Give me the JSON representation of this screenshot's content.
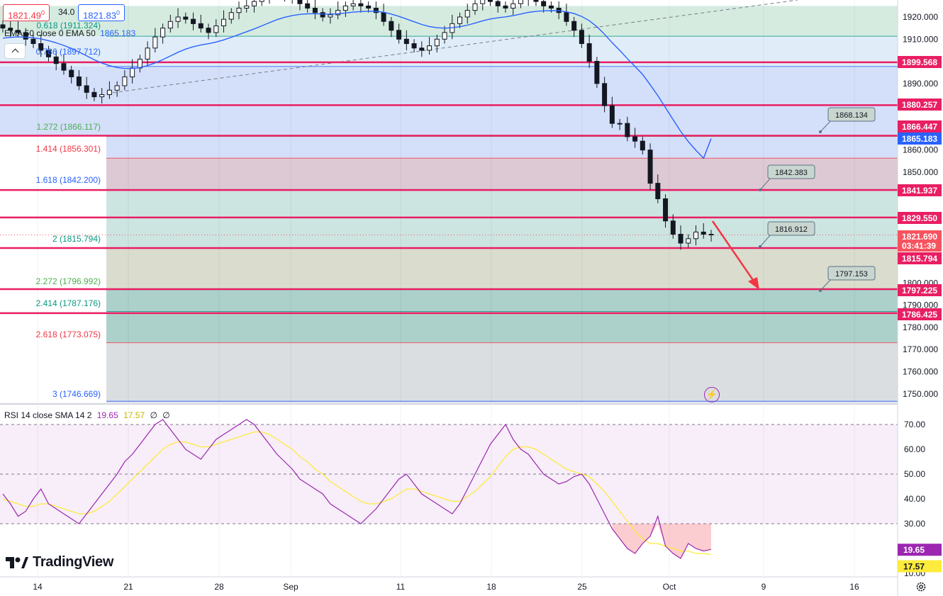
{
  "header": {
    "bid": "1821.49",
    "bid_sup": "0",
    "spread": "34.0",
    "ask": "1821.83",
    "ask_sup": "0",
    "ema_label": "EMA 50 close 0 EMA 50",
    "ema_value": "1865.183",
    "collapse_icon": "chevron-up-icon"
  },
  "colors": {
    "horizontal_line": "#e91e63",
    "ema": "#2962ff",
    "rsi": "#9c27b0",
    "rsi_sma": "#ffeb3b",
    "arrow": "#f23645",
    "up_candle": "#ffffff",
    "down_candle": "#131722"
  },
  "price_axis": {
    "ticks": [
      "1920.000",
      "1910.000",
      "1890.000",
      "1880.000",
      "1870.000",
      "1860.000",
      "1850.000",
      "1800.000",
      "1790.000",
      "1780.000",
      "1770.000",
      "1760.000",
      "1750.000"
    ],
    "tags": [
      {
        "label": "1899.568",
        "style": "red"
      },
      {
        "label": "1880.257",
        "style": "red"
      },
      {
        "label": "1866.447",
        "style": "red"
      },
      {
        "label": "1865.183",
        "style": "blue"
      },
      {
        "label": "1841.937",
        "style": "red"
      },
      {
        "label": "1829.550",
        "style": "red"
      },
      {
        "label": "1821.690",
        "style": "last"
      },
      {
        "label": "03:41:39",
        "style": "last"
      },
      {
        "label": "1815.794",
        "style": "red"
      },
      {
        "label": "1797.225",
        "style": "red"
      },
      {
        "label": "1786.425",
        "style": "red"
      }
    ]
  },
  "fib_labels": [
    {
      "text": "0.618 (1911.324)",
      "color": "#089981"
    },
    {
      "text": "0.786 (1897.712)",
      "color": "#2962ff"
    },
    {
      "text": "1.272 (1866.117)",
      "color": "#4caf50"
    },
    {
      "text": "1.414 (1856.301)",
      "color": "#f23645"
    },
    {
      "text": "1.618 (1842.200)",
      "color": "#2962ff"
    },
    {
      "text": "2 (1815.794)",
      "color": "#089981"
    },
    {
      "text": "2.272 (1796.992)",
      "color": "#4caf50"
    },
    {
      "text": "2.414 (1787.176)",
      "color": "#089981"
    },
    {
      "text": "2.618 (1773.075)",
      "color": "#f23645"
    },
    {
      "text": "3 (1746.669)",
      "color": "#2962ff"
    }
  ],
  "callouts": [
    "1868.134",
    "1842.383",
    "1816.912",
    "1797.153"
  ],
  "rsi": {
    "title": "RSI 14 close SMA 14 2",
    "rsi_value": "19.65",
    "sma_value": "17.57",
    "extra1": "∅",
    "extra2": "∅",
    "ticks": [
      "70.00",
      "60.00",
      "50.00",
      "40.00",
      "30.00",
      "20.00",
      "10.00"
    ],
    "tag_rsi": "19.65",
    "tag_sma": "17.57"
  },
  "time_axis": {
    "labels": [
      "14",
      "21",
      "28",
      "Sep",
      "11",
      "18",
      "25",
      "Oct",
      "9",
      "16"
    ]
  },
  "branding": {
    "logo_text": "TradingView"
  },
  "icons": {
    "alert": "lightning-icon",
    "settings": "gear-icon"
  },
  "chart_data": [
    {
      "type": "candlestick",
      "title": "",
      "y_axis_side": "right",
      "x_labels": [
        "14",
        "21",
        "28",
        "Sep",
        "11",
        "18",
        "25",
        "Oct",
        "9",
        "16"
      ],
      "horizontal_levels": [
        1899.568,
        1880.257,
        1866.447,
        1841.937,
        1829.55,
        1815.794,
        1797.225,
        1786.425
      ],
      "fib_extension_levels": [
        {
          "ratio": 0.618,
          "price": 1911.324
        },
        {
          "ratio": 0.786,
          "price": 1897.712
        },
        {
          "ratio": 1.272,
          "price": 1866.117
        },
        {
          "ratio": 1.414,
          "price": 1856.301
        },
        {
          "ratio": 1.618,
          "price": 1842.2
        },
        {
          "ratio": 2,
          "price": 1815.794
        },
        {
          "ratio": 2.272,
          "price": 1796.992
        },
        {
          "ratio": 2.414,
          "price": 1787.176
        },
        {
          "ratio": 2.618,
          "price": 1773.075
        },
        {
          "ratio": 3,
          "price": 1746.669
        }
      ],
      "ema_50_last": 1865.183,
      "last_price": 1821.69,
      "price_targets": [
        1868.134,
        1842.383,
        1816.912,
        1797.153
      ],
      "close_series": [
        1915,
        1914,
        1913,
        1910,
        1908,
        1905,
        1902,
        1899,
        1896,
        1893,
        1889,
        1886,
        1884,
        1885,
        1887,
        1889,
        1893,
        1897,
        1901,
        1906,
        1911,
        1915,
        1918,
        1920,
        1919,
        1917,
        1915,
        1913,
        1916,
        1919,
        1922,
        1924,
        1925,
        1927,
        1929,
        1931,
        1932,
        1930,
        1928,
        1926,
        1924,
        1922,
        1920,
        1921,
        1923,
        1925,
        1926,
        1925,
        1924,
        1922,
        1918,
        1914,
        1910,
        1908,
        1906,
        1905,
        1907,
        1910,
        1913,
        1917,
        1920,
        1923,
        1926,
        1928,
        1927,
        1925,
        1924,
        1926,
        1928,
        1929,
        1927,
        1925,
        1924,
        1922,
        1918,
        1914,
        1908,
        1900,
        1890,
        1880,
        1872,
        1872,
        1866,
        1864,
        1860,
        1845,
        1838,
        1828,
        1822,
        1818,
        1820,
        1823,
        1822,
        1821.69
      ]
    },
    {
      "type": "line",
      "title": "",
      "ylim": [
        10,
        75
      ],
      "series": [
        {
          "name": "RSI 14",
          "values": [
            42,
            38,
            33,
            35,
            40,
            44,
            38,
            36,
            34,
            32,
            30,
            34,
            38,
            42,
            46,
            50,
            55,
            58,
            62,
            66,
            70,
            72,
            68,
            64,
            60,
            58,
            56,
            60,
            64,
            66,
            68,
            70,
            72,
            70,
            66,
            62,
            58,
            55,
            52,
            48,
            46,
            44,
            42,
            38,
            36,
            34,
            32,
            30,
            33,
            36,
            40,
            44,
            48,
            50,
            46,
            42,
            40,
            38,
            36,
            34,
            38,
            44,
            50,
            56,
            62,
            66,
            70,
            64,
            60,
            58,
            54,
            50,
            48,
            46,
            47,
            49,
            50,
            46,
            40,
            34,
            28,
            24,
            20,
            18,
            22,
            25,
            33,
            21,
            18,
            16,
            22,
            20,
            19,
            19.65
          ]
        },
        {
          "name": "SMA 14",
          "values": [
            40,
            39,
            38,
            37,
            37,
            38,
            38,
            37,
            36,
            35,
            34,
            34,
            35,
            37,
            39,
            42,
            45,
            48,
            51,
            54,
            57,
            60,
            62,
            63,
            63,
            62,
            61,
            61,
            62,
            63,
            64,
            65,
            66,
            67,
            67,
            66,
            64,
            62,
            60,
            57,
            55,
            52,
            50,
            47,
            45,
            43,
            41,
            39,
            38,
            38,
            39,
            40,
            42,
            44,
            44,
            43,
            42,
            41,
            40,
            39,
            39,
            41,
            43,
            46,
            49,
            53,
            57,
            60,
            61,
            61,
            60,
            58,
            56,
            54,
            52,
            51,
            50,
            49,
            46,
            43,
            39,
            35,
            31,
            27,
            24,
            22,
            22,
            21,
            20,
            19,
            19,
            18,
            18,
            17.57
          ]
        }
      ],
      "levels": [
        70,
        50,
        30
      ]
    }
  ]
}
